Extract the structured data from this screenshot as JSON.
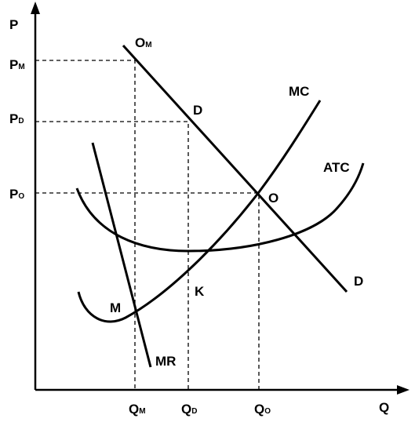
{
  "axes": {
    "y": "P",
    "x": "Q"
  },
  "price_labels": [
    {
      "main": "P",
      "sub": "M"
    },
    {
      "main": "P",
      "sub": "D"
    },
    {
      "main": "P",
      "sub": "O"
    }
  ],
  "quantity_labels": [
    {
      "main": "Q",
      "sub": "M"
    },
    {
      "main": "Q",
      "sub": "D"
    },
    {
      "main": "Q",
      "sub": "O"
    }
  ],
  "point_labels": {
    "om": {
      "main": "O",
      "sub": "M"
    },
    "d_top": "D",
    "o": "O",
    "m": "M",
    "k": "K"
  },
  "curve_labels": {
    "mc": "MC",
    "atc": "ATC",
    "demand": "D",
    "mr": "MR"
  }
}
